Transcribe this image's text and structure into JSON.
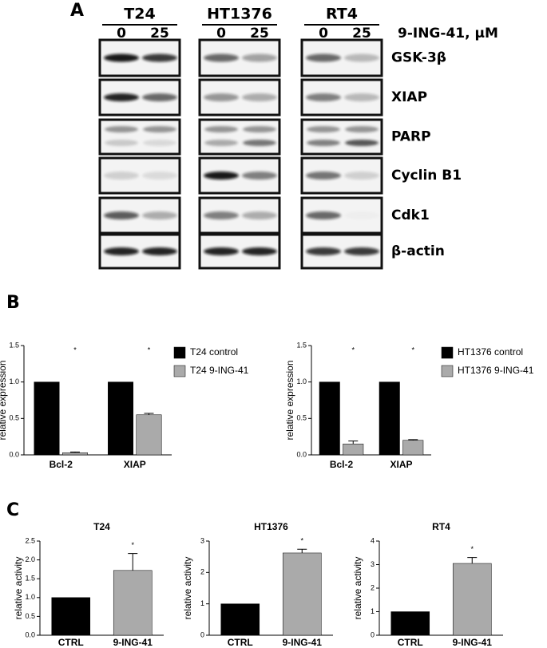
{
  "panel_labels": [
    "A",
    "B",
    "C"
  ],
  "blot": {
    "cell_lines": [
      "T24",
      "HT1376",
      "RT4"
    ],
    "doses": [
      "0",
      "25"
    ],
    "treatment_label": "9-ING-41, μM",
    "proteins": [
      "GSK-3β",
      "XIAP",
      "PARP",
      "Cyclin B1",
      "Cdk1",
      "β-actin"
    ]
  },
  "chart_data": [
    {
      "type": "bar",
      "ylabel": "relative expression",
      "categories": [
        "Bcl-2",
        "XIAP"
      ],
      "ylim": [
        0,
        1.5
      ],
      "yticks": [
        {
          "value": 0,
          "label": "0.0"
        },
        {
          "value": 0.5,
          "label": "0.5"
        },
        {
          "value": 1,
          "label": "1.0"
        },
        {
          "value": 1.5,
          "label": "1.5"
        }
      ],
      "series": [
        {
          "name": "T24  control",
          "color": "#000000",
          "values": [
            1,
            1
          ]
        },
        {
          "name": "T24 9-ING-41",
          "color": "#aaaaaa",
          "values": [
            0.03,
            0.55
          ],
          "errors": [
            0.01,
            0.02
          ],
          "annotations": [
            "*",
            "*"
          ]
        }
      ]
    },
    {
      "type": "bar",
      "ylabel": "relative expression",
      "categories": [
        "Bcl-2",
        "XIAP"
      ],
      "ylim": [
        0,
        1.5
      ],
      "yticks": [
        {
          "value": 0,
          "label": "0.0"
        },
        {
          "value": 0.5,
          "label": "0.5"
        },
        {
          "value": 1,
          "label": "1.0"
        },
        {
          "value": 1.5,
          "label": "1.5"
        }
      ],
      "series": [
        {
          "name": "HT1376 control",
          "color": "#000000",
          "values": [
            1,
            1
          ]
        },
        {
          "name": "HT1376 9-ING-41",
          "color": "#aaaaaa",
          "values": [
            0.15,
            0.2
          ],
          "errors": [
            0.04,
            0.01
          ],
          "annotations": [
            "*",
            "*"
          ]
        }
      ]
    },
    {
      "type": "bar",
      "title": "T24",
      "ylabel": "relative activity",
      "categories": [
        "CTRL",
        "9-ING-41"
      ],
      "values": [
        1,
        1.72
      ],
      "errors": [
        0,
        0.45
      ],
      "colors": [
        "#000000",
        "#aaaaaa"
      ],
      "annotations": [
        null,
        "*"
      ],
      "ylim": [
        0,
        2.5
      ],
      "yticks": [
        {
          "value": 0,
          "label": "0.0"
        },
        {
          "value": 0.5,
          "label": "0.5"
        },
        {
          "value": 1,
          "label": "1.0"
        },
        {
          "value": 1.5,
          "label": "1.5"
        },
        {
          "value": 2,
          "label": "2.0"
        },
        {
          "value": 2.5,
          "label": "2.5"
        }
      ]
    },
    {
      "type": "bar",
      "title": "HT1376",
      "ylabel": "relative activity",
      "categories": [
        "CTRL",
        "9-ING-41"
      ],
      "values": [
        1,
        2.62
      ],
      "errors": [
        0,
        0.12
      ],
      "colors": [
        "#000000",
        "#aaaaaa"
      ],
      "annotations": [
        null,
        "*"
      ],
      "ylim": [
        0,
        3
      ],
      "yticks": [
        0,
        1,
        2,
        3
      ]
    },
    {
      "type": "bar",
      "title": "RT4",
      "ylabel": "relative activity",
      "categories": [
        "CTRL",
        "9-ING-41"
      ],
      "values": [
        1,
        3.05
      ],
      "errors": [
        0,
        0.25
      ],
      "colors": [
        "#000000",
        "#aaaaaa"
      ],
      "annotations": [
        null,
        "*"
      ],
      "ylim": [
        0,
        4
      ],
      "yticks": [
        0,
        1,
        2,
        3,
        4
      ]
    }
  ]
}
